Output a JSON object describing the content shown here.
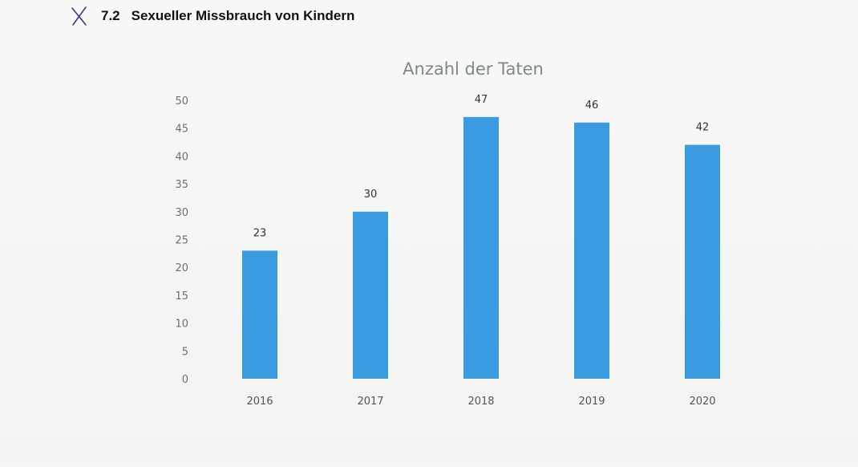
{
  "header": {
    "section_number": "7.2",
    "section_title": "Sexueller Missbrauch von Kindern",
    "mark_icon": "x-mark-icon"
  },
  "chart_data": {
    "type": "bar",
    "title": "Anzahl der Taten",
    "xlabel": "",
    "ylabel": "",
    "categories": [
      "2016",
      "2017",
      "2018",
      "2019",
      "2020"
    ],
    "values": [
      23,
      30,
      47,
      46,
      42
    ],
    "ylim": [
      0,
      50
    ],
    "yticks": [
      0,
      5,
      10,
      15,
      20,
      25,
      30,
      35,
      40,
      45,
      50
    ],
    "grid": false,
    "legend": "none",
    "bar_color": "#3b9be0",
    "data_labels": true
  }
}
